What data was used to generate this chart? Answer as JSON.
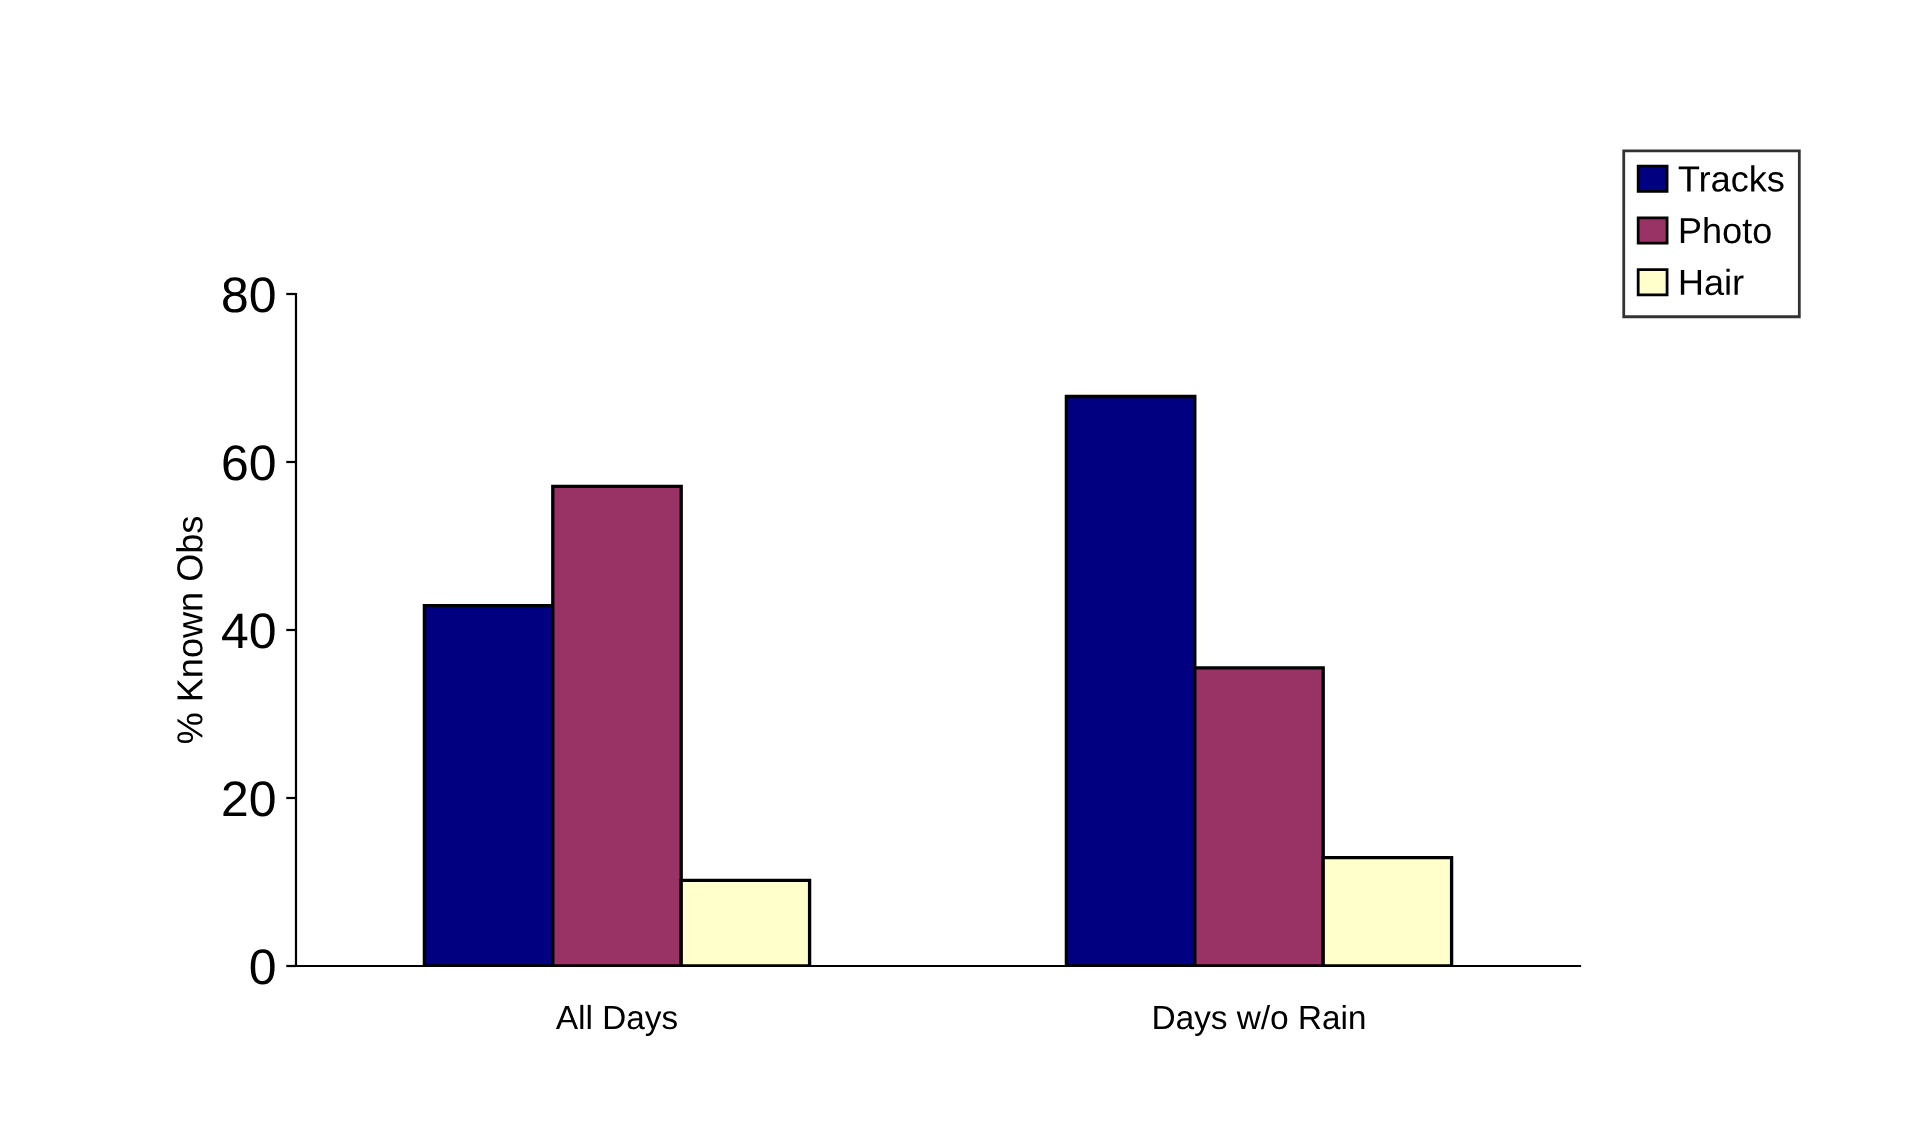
{
  "chart_data": {
    "type": "bar",
    "ylabel": "% Known Obs",
    "categories": [
      "All Days",
      "Days w/o Rain"
    ],
    "series": [
      {
        "name": "Tracks",
        "color": "#000080",
        "values": [
          42.9,
          67.8
        ]
      },
      {
        "name": "Photo",
        "color": "#993366",
        "values": [
          57.1,
          35.5
        ]
      },
      {
        "name": "Hair",
        "color": "#ffffcc",
        "values": [
          10.2,
          12.9
        ]
      }
    ],
    "ylim": [
      0,
      80
    ],
    "yticks": [
      0,
      20,
      40,
      60,
      80
    ],
    "grid": false,
    "legend": "top right"
  }
}
